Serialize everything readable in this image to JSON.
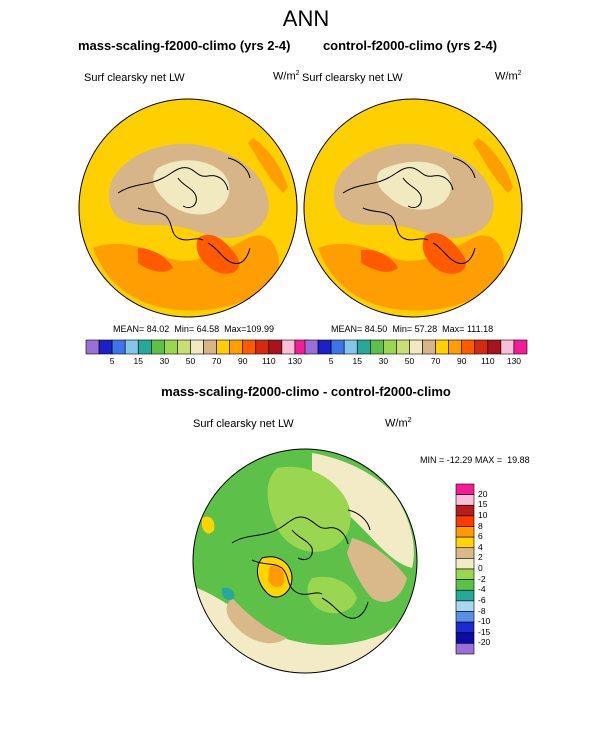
{
  "figure": {
    "title": "ANN",
    "panels": [
      {
        "title": "mass-scaling-f2000-climo (yrs 2-4)",
        "variable": "Surf clearsky net LW",
        "units_base": "W/m",
        "units_exp": "2",
        "mean_label": "MEAN=",
        "mean": "84.02",
        "min_label": "Min=",
        "min": "64.58",
        "max_label": "Max=",
        "max": "109.99"
      },
      {
        "title": "control-f2000-climo (yrs 2-4)",
        "variable": "Surf clearsky net LW",
        "units_base": "W/m",
        "units_exp": "2",
        "mean_label": "MEAN=",
        "mean": "84.50",
        "min_label": "Min=",
        "min": "57.28",
        "max_label": "Max=",
        "max": "111.18"
      }
    ],
    "diff_panel": {
      "title": "mass-scaling-f2000-climo - control-f2000-climo",
      "variable": "Surf clearsky net LW",
      "units_base": "W/m",
      "units_exp": "2",
      "min_label": "MIN =",
      "min": "-12.29",
      "max_label": "MAX =",
      "max": "19.88"
    }
  },
  "chart_data": [
    {
      "type": "heatmap",
      "projection": "polar-stereographic north",
      "title": "mass-scaling-f2000-climo (yrs 2-4)",
      "variable": "Surf clearsky net LW",
      "units": "W/m^2",
      "mean": 84.02,
      "min": 64.58,
      "max": 109.99,
      "colorbar_levels": [
        "5",
        "15",
        "30",
        "50",
        "70",
        "90",
        "110",
        "130"
      ],
      "colorbar_colors": [
        "#9a6fd8",
        "#1d1fc8",
        "#3f73e8",
        "#84c6ea",
        "#26a89a",
        "#5cc049",
        "#9ad64f",
        "#c9df74",
        "#f1e9bf",
        "#d8b588",
        "#ffd000",
        "#ff9e00",
        "#ff5a00",
        "#d42a12",
        "#a8141e",
        "#f8bfd6",
        "#f61c96"
      ]
    },
    {
      "type": "heatmap",
      "projection": "polar-stereographic north",
      "title": "control-f2000-climo (yrs 2-4)",
      "variable": "Surf clearsky net LW",
      "units": "W/m^2",
      "mean": 84.5,
      "min": 57.28,
      "max": 111.18,
      "colorbar_levels": [
        "5",
        "15",
        "30",
        "50",
        "70",
        "90",
        "110",
        "130"
      ],
      "colorbar_colors": [
        "#9a6fd8",
        "#1d1fc8",
        "#3f73e8",
        "#84c6ea",
        "#26a89a",
        "#5cc049",
        "#9ad64f",
        "#c9df74",
        "#f1e9bf",
        "#d8b588",
        "#ffd000",
        "#ff9e00",
        "#ff5a00",
        "#d42a12",
        "#a8141e",
        "#f8bfd6",
        "#f61c96"
      ]
    },
    {
      "type": "heatmap",
      "projection": "polar-stereographic north",
      "title": "mass-scaling-f2000-climo - control-f2000-climo",
      "variable": "Surf clearsky net LW",
      "units": "W/m^2",
      "min": -12.29,
      "max": 19.88,
      "colorbar_levels": [
        "20",
        "15",
        "10",
        "8",
        "6",
        "4",
        "2",
        "0",
        "-2",
        "-4",
        "-6",
        "-8",
        "-10",
        "-15",
        "-20"
      ],
      "colorbar_colors": [
        "#f61c96",
        "#f8bfd6",
        "#b71c1c",
        "#ff3b00",
        "#ff9a00",
        "#ffd400",
        "#d9b98a",
        "#f3ebc6",
        "#9ad64f",
        "#5cc049",
        "#26a89a",
        "#a6d9ec",
        "#5b8ee8",
        "#1d2ad0",
        "#0b0ba8",
        "#9a6fd8"
      ]
    }
  ]
}
